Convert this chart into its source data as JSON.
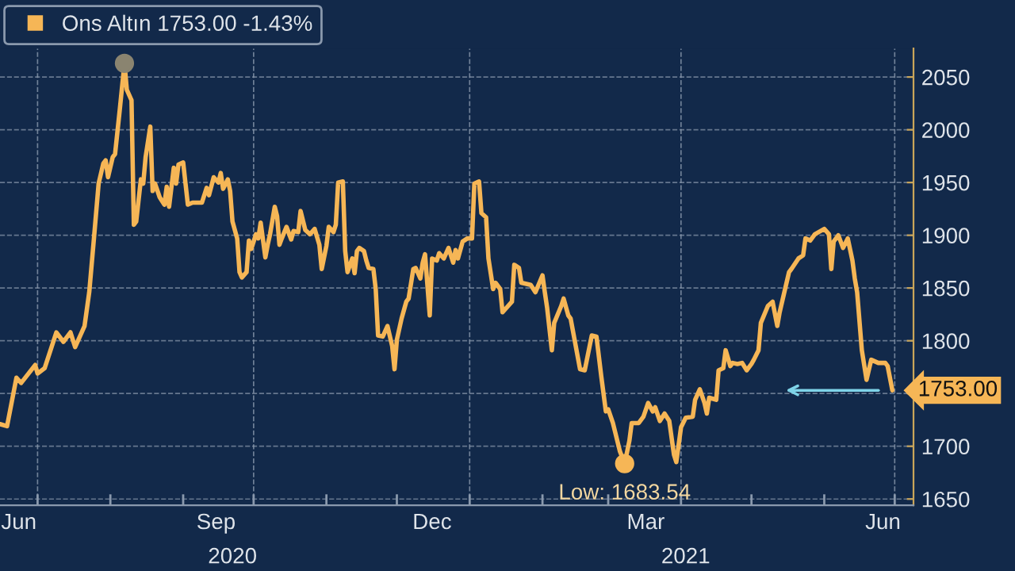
{
  "chart_data": {
    "type": "line",
    "series": [
      {
        "name": "Ons Altın 1753.00 -1.43%",
        "color": "#f6b656",
        "x": [
          "2020-06-15",
          "2020-06-18",
          "2020-06-22",
          "2020-06-24",
          "2020-06-30",
          "2020-07-01",
          "2020-07-04",
          "2020-07-09",
          "2020-07-12",
          "2020-07-15",
          "2020-07-17",
          "2020-07-21",
          "2020-07-23",
          "2020-07-25",
          "2020-07-27",
          "2020-07-29",
          "2020-07-30",
          "2020-07-31",
          "2020-08-02",
          "2020-08-03",
          "2020-08-05",
          "2020-08-07",
          "2020-08-08",
          "2020-08-10",
          "2020-08-11",
          "2020-08-12",
          "2020-08-14",
          "2020-08-15",
          "2020-08-16",
          "2020-08-18",
          "2020-08-19",
          "2020-08-20",
          "2020-08-22",
          "2020-08-24",
          "2020-08-25",
          "2020-08-26",
          "2020-08-28",
          "2020-08-29",
          "2020-08-30",
          "2020-09-01",
          "2020-09-02",
          "2020-09-03",
          "2020-09-05",
          "2020-09-09",
          "2020-09-11",
          "2020-09-12",
          "2020-09-14",
          "2020-09-16",
          "2020-09-17",
          "2020-09-18",
          "2020-09-20",
          "2020-09-21",
          "2020-09-22",
          "2020-09-24",
          "2020-09-25",
          "2020-09-26",
          "2020-09-28",
          "2020-09-29",
          "2020-09-30",
          "2020-10-02",
          "2020-10-03",
          "2020-10-04",
          "2020-10-06",
          "2020-10-07",
          "2020-10-08",
          "2020-10-10",
          "2020-10-11",
          "2020-10-12",
          "2020-10-13",
          "2020-10-15",
          "2020-10-17",
          "2020-10-18",
          "2020-10-20",
          "2020-10-21",
          "2020-10-23",
          "2020-10-25",
          "2020-10-27",
          "2020-10-29",
          "2020-10-30",
          "2020-11-01",
          "2020-11-02",
          "2020-11-04",
          "2020-11-05",
          "2020-11-06",
          "2020-11-08",
          "2020-11-09",
          "2020-11-10",
          "2020-11-12",
          "2020-11-13",
          "2020-11-14",
          "2020-11-15",
          "2020-11-17",
          "2020-11-18",
          "2020-11-19",
          "2020-11-21",
          "2020-11-22",
          "2020-11-23",
          "2020-11-25",
          "2020-11-27",
          "2020-11-29",
          "2020-11-30",
          "2020-12-01",
          "2020-12-03",
          "2020-12-05",
          "2020-12-06",
          "2020-12-08",
          "2020-12-09",
          "2020-12-11",
          "2020-12-12",
          "2020-12-13",
          "2020-12-15",
          "2020-12-16",
          "2020-12-18",
          "2020-12-19",
          "2020-12-21",
          "2020-12-23",
          "2020-12-25",
          "2020-12-26",
          "2020-12-27",
          "2020-12-29",
          "2020-12-31",
          "2021-01-02",
          "2021-01-03",
          "2021-01-05",
          "2021-01-06",
          "2021-01-08",
          "2021-01-09",
          "2021-01-11",
          "2021-01-12",
          "2021-01-14",
          "2021-01-15",
          "2021-01-19",
          "2021-01-20",
          "2021-01-22",
          "2021-01-23",
          "2021-01-27",
          "2021-01-29",
          "2021-02-01",
          "2021-02-02",
          "2021-02-03",
          "2021-02-05",
          "2021-02-06",
          "2021-02-09",
          "2021-02-10",
          "2021-02-12",
          "2021-02-13",
          "2021-02-17",
          "2021-02-19",
          "2021-02-22",
          "2021-02-24",
          "2021-02-26",
          "2021-02-28",
          "2021-03-01",
          "2021-03-03",
          "2021-03-06",
          "2021-03-08",
          "2021-03-10",
          "2021-03-11",
          "2021-03-14",
          "2021-03-16",
          "2021-03-18",
          "2021-03-20",
          "2021-03-21",
          "2021-03-23",
          "2021-03-25",
          "2021-03-27",
          "2021-03-29",
          "2021-03-30",
          "2021-04-01",
          "2021-04-03",
          "2021-04-06",
          "2021-04-07",
          "2021-04-09",
          "2021-04-11",
          "2021-04-12",
          "2021-04-13",
          "2021-04-16",
          "2021-04-17",
          "2021-04-19",
          "2021-04-20",
          "2021-04-22",
          "2021-04-23",
          "2021-04-25",
          "2021-04-27",
          "2021-04-29",
          "2021-05-01",
          "2021-05-02",
          "2021-05-04",
          "2021-05-05",
          "2021-05-08",
          "2021-05-10",
          "2021-05-12",
          "2021-05-13",
          "2021-05-15",
          "2021-05-17",
          "2021-05-18",
          "2021-05-21",
          "2021-05-23",
          "2021-05-24",
          "2021-05-26",
          "2021-05-28",
          "2021-06-01",
          "2021-06-03",
          "2021-06-04",
          "2021-06-05",
          "2021-06-07",
          "2021-06-09",
          "2021-06-11",
          "2021-06-13",
          "2021-06-14",
          "2021-06-15",
          "2021-06-17",
          "2021-06-19",
          "2021-06-21",
          "2021-06-24",
          "2021-06-27",
          "2021-06-28",
          "2021-06-30"
        ],
        "values": [
          1721,
          1719,
          1765,
          1760,
          1777,
          1769,
          1774,
          1808,
          1799,
          1808,
          1794,
          1814,
          1846,
          1897,
          1949,
          1968,
          1971,
          1955,
          1974,
          1977,
          2019,
          2063,
          2038,
          2028,
          1910,
          1913,
          1953,
          1949,
          1974,
          2003,
          1942,
          1949,
          1936,
          1929,
          1946,
          1927,
          1964,
          1949,
          1967,
          1969,
          1949,
          1929,
          1931,
          1931,
          1945,
          1938,
          1955,
          1950,
          1959,
          1944,
          1953,
          1942,
          1913,
          1897,
          1865,
          1860,
          1865,
          1895,
          1887,
          1901,
          1897,
          1912,
          1879,
          1891,
          1901,
          1927,
          1918,
          1891,
          1897,
          1908,
          1896,
          1904,
          1903,
          1923,
          1905,
          1901,
          1906,
          1891,
          1868,
          1890,
          1908,
          1903,
          1910,
          1950,
          1951,
          1885,
          1865,
          1878,
          1864,
          1885,
          1888,
          1885,
          1876,
          1869,
          1868,
          1849,
          1805,
          1804,
          1814,
          1795,
          1773,
          1801,
          1821,
          1837,
          1840,
          1868,
          1869,
          1859,
          1874,
          1882,
          1824,
          1878,
          1876,
          1883,
          1878,
          1888,
          1874,
          1886,
          1878,
          1894,
          1897,
          1897,
          1949,
          1951,
          1921,
          1917,
          1878,
          1849,
          1855,
          1849,
          1827,
          1837,
          1872,
          1869,
          1855,
          1853,
          1846,
          1862,
          1846,
          1831,
          1791,
          1817,
          1833,
          1840,
          1824,
          1821,
          1773,
          1772,
          1805,
          1804,
          1767,
          1733,
          1735,
          1722,
          1695,
          1683.54,
          1705,
          1722,
          1722,
          1728,
          1741,
          1733,
          1737,
          1724,
          1731,
          1724,
          1692,
          1685,
          1718,
          1727,
          1728,
          1744,
          1754,
          1741,
          1731,
          1746,
          1744,
          1772,
          1774,
          1791,
          1776,
          1779,
          1778,
          1779,
          1772,
          1778,
          1782,
          1791,
          1817,
          1833,
          1837,
          1814,
          1827,
          1846,
          1865,
          1868,
          1878,
          1881,
          1897,
          1895,
          1901,
          1906,
          1901,
          1868,
          1894,
          1900,
          1888,
          1897,
          1876,
          1859,
          1846,
          1791,
          1763,
          1782,
          1779,
          1779,
          1776,
          1753
        ]
      },
      {
        "type": "scatter",
        "color": "#8a8470",
        "x": [
          "2020-08-07"
        ],
        "values": [
          2063
        ]
      },
      {
        "type": "scatter",
        "color": "#f6b656",
        "x": [
          "2021-03-08"
        ],
        "values": [
          1683.54
        ]
      }
    ],
    "xlim": [
      "2020-06-15",
      "2021-07-09"
    ],
    "xticks": [
      {
        "value": "2020-06-23",
        "label": "Jun"
      },
      {
        "value": "2020-09-15",
        "label": "Sep"
      },
      {
        "value": "2020-12-16",
        "label": "Dec"
      },
      {
        "value": "2021-03-17",
        "label": "Mar"
      },
      {
        "value": "2021-06-26",
        "label": "Jun"
      },
      {
        "value": "2020-07-01",
        "label": null
      },
      {
        "value": "2020-08-01",
        "label": null
      },
      {
        "value": "2020-09-01",
        "label": null
      },
      {
        "value": "2020-10-01",
        "label": null
      },
      {
        "value": "2020-11-01",
        "label": null
      },
      {
        "value": "2020-12-01",
        "label": null
      },
      {
        "value": "2021-01-01",
        "label": null
      },
      {
        "value": "2021-02-01",
        "label": null
      },
      {
        "value": "2021-03-01",
        "label": null
      },
      {
        "value": "2021-04-01",
        "label": null
      },
      {
        "value": "2021-05-01",
        "label": null
      },
      {
        "value": "2021-06-01",
        "label": null
      },
      {
        "value": "2021-07-01",
        "label": null
      }
    ],
    "x2lim": [
      "2020-06-15",
      "2021-07-09"
    ],
    "x2ticks": [
      {
        "value": "2020-09-22",
        "label": "2020"
      },
      {
        "value": "2021-04-03",
        "label": "2021"
      }
    ],
    "ylim": [
      1644,
      2077
    ],
    "yticks": [
      1650,
      1700,
      {
        "value": 1750,
        "label": null
      },
      1800,
      1850,
      1900,
      1950,
      2000,
      2050
    ],
    "grid": "y",
    "ref_lines": [
      {
        "axis": "x",
        "value": "2020-07-01",
        "color": "#8a99ad",
        "line_style": "dashed"
      },
      {
        "axis": "x",
        "value": "2020-10-01",
        "color": "#8a99ad",
        "line_style": "dashed"
      },
      {
        "axis": "x",
        "value": "2021-01-01",
        "color": "#8a99ad",
        "line_style": "dashed"
      },
      {
        "axis": "x",
        "value": "2021-04-01",
        "color": "#8a99ad",
        "line_style": "dashed"
      },
      {
        "axis": "x",
        "value": "2021-07-01",
        "color": "#8a99ad",
        "line_style": "dashed"
      }
    ],
    "annotations": [
      {
        "text": "Low: 1683.54",
        "x": "2021-03-08",
        "y": 1683.54
      },
      {
        "text": "1753.00",
        "x": "2021-06-30",
        "y": 1753
      }
    ],
    "legend": "top left",
    "line_style": "solid"
  }
}
